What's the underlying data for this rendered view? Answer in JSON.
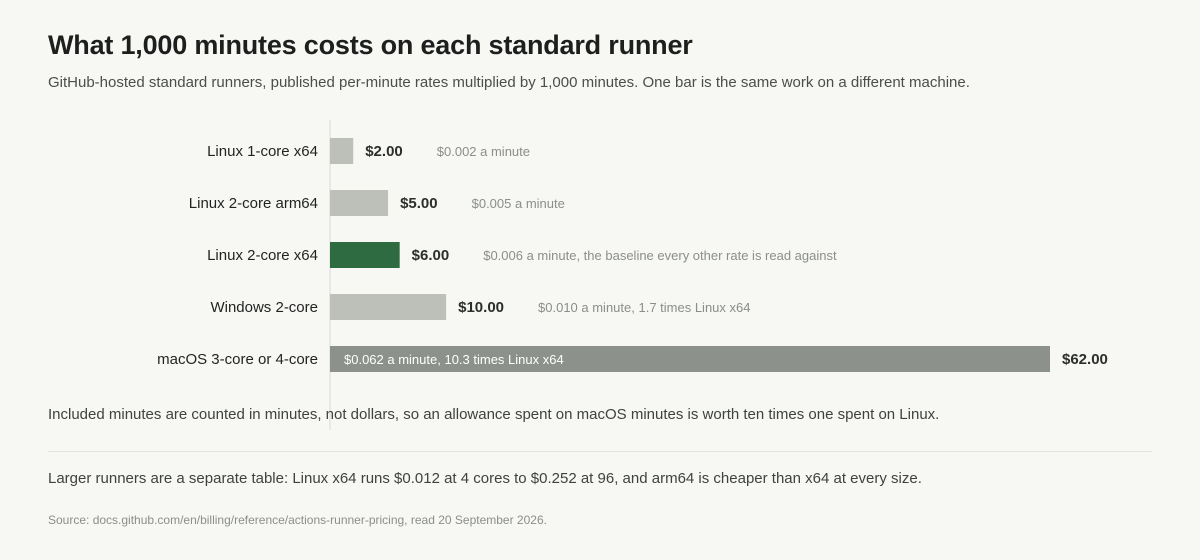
{
  "title": "What 1,000 minutes costs on each standard runner",
  "subtitle": "GitHub-hosted standard runners, published per-minute rates multiplied by 1,000 minutes. One bar is the same work on a different machine.",
  "chart_data": {
    "type": "bar",
    "orientation": "horizontal",
    "title": "What 1,000 minutes costs on each standard runner",
    "xlabel": "",
    "ylabel": "",
    "grid": false,
    "categories": [
      "Linux 1-core x64",
      "Linux 2-core arm64",
      "Linux 2-core x64",
      "Windows 2-core",
      "macOS 3-core or 4-core"
    ],
    "values": [
      2.0,
      5.0,
      6.0,
      10.0,
      62.0
    ],
    "value_labels": [
      "$2.00",
      "$5.00",
      "$6.00",
      "$10.00",
      "$62.00"
    ],
    "annotations": [
      "$0.002 a minute",
      "$0.005 a minute",
      "$0.006 a minute, the baseline every other rate is read against",
      "$0.010 a minute, 1.7 times Linux x64",
      "$0.062 a minute, 10.3 times Linux x64"
    ],
    "xlim": [
      0,
      62
    ],
    "highlight_index": 2,
    "colors": {
      "default": "#bcc0b9",
      "highlight": "#2e6b40",
      "max": "#8c918b",
      "annotation": "#8a8f8b",
      "value": "#2b2f2c",
      "inside_text": "#ffffff",
      "axis": "#d9dbd5"
    }
  },
  "footnote": "Included minutes are counted in minutes, not dollars, so an allowance spent on macOS minutes is worth ten times one spent on Linux.",
  "note": "Larger runners are a separate table: Linux x64 runs $0.012 at 4 cores to $0.252 at 96, and arm64 is cheaper than x64 at every size.",
  "source": "Source: docs.github.com/en/billing/reference/actions-runner-pricing, read 20 September 2026."
}
